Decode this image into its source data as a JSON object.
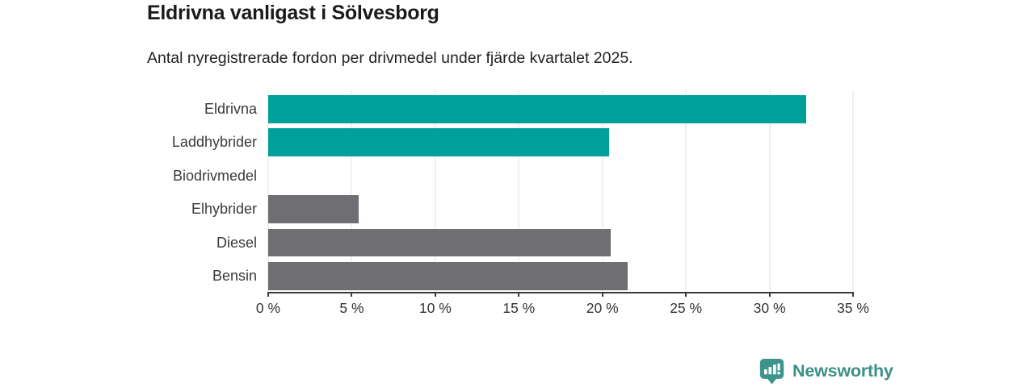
{
  "header": {
    "title": "Eldrivna vanligast i Sölvesborg",
    "subtitle": "Antal nyregistrerade fordon per drivmedel under fjärde kvartalet 2025."
  },
  "chart_data": {
    "type": "bar",
    "orientation": "horizontal",
    "title": "Eldrivna vanligast i Sölvesborg",
    "subtitle": "Antal nyregistrerade fordon per drivmedel under fjärde kvartalet 2025.",
    "categories": [
      "Eldrivna",
      "Laddhybrider",
      "Biodrivmedel",
      "Elhybrider",
      "Diesel",
      "Bensin"
    ],
    "values": [
      32.2,
      20.4,
      0,
      5.4,
      20.5,
      21.5
    ],
    "unit": "%",
    "xlabel": "",
    "ylabel": "",
    "xlim": [
      0,
      35
    ],
    "x_tick_values": [
      0,
      5,
      10,
      15,
      20,
      25,
      30,
      35
    ],
    "x_tick_labels": [
      "0 %",
      "5 %",
      "10 %",
      "15 %",
      "20 %",
      "25 %",
      "30 %",
      "35 %"
    ],
    "grid": true,
    "legend": false,
    "bar_colors": [
      "#00a09a",
      "#00a09a",
      "#6e6e73",
      "#6e6e73",
      "#6e6e73",
      "#6e6e73"
    ],
    "highlight_color": "#00a09a",
    "default_color": "#6e6e73",
    "gridline_color": "#e2e2e2",
    "axis_color": "#3a3a3a"
  },
  "footer": {
    "brand": "Newsworthy",
    "brand_color": "#3b9089",
    "logo_icon": "bar-chart-speech-bubble-icon"
  }
}
